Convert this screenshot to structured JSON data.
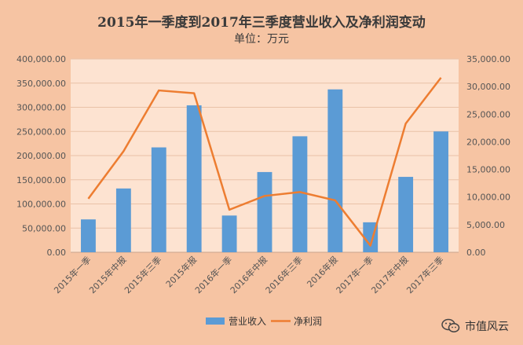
{
  "chart_data": {
    "type": "bar",
    "title": "2015年一季度到2017年三季度营业收入及净利润变动",
    "subtitle": "单位：万元",
    "categories": [
      "2015年一季",
      "2015年中报",
      "2015年三季",
      "2015年报",
      "2016年一季",
      "2016年中报",
      "2016年三季",
      "2016年报",
      "2017年一季",
      "2017年中报",
      "2017年三季"
    ],
    "series": [
      {
        "name": "营业收入",
        "type": "bar",
        "axis": "left",
        "color": "#5b9bd5",
        "values": [
          68000,
          132000,
          217000,
          304000,
          76000,
          166000,
          240000,
          337000,
          62000,
          156000,
          250000
        ]
      },
      {
        "name": "净利润",
        "type": "line",
        "axis": "right",
        "color": "#ed7d31",
        "values": [
          9700,
          18300,
          29300,
          28800,
          7700,
          10200,
          10900,
          9400,
          1200,
          23300,
          31600
        ]
      }
    ],
    "left_axis": {
      "min": 0,
      "max": 400000,
      "step": 50000,
      "tick_labels": [
        "0.00",
        "50,000.00",
        "100,000.00",
        "150,000.00",
        "200,000.00",
        "250,000.00",
        "300,000.00",
        "350,000.00",
        "400,000.00"
      ]
    },
    "right_axis": {
      "min": 0,
      "max": 35000,
      "step": 5000,
      "tick_labels": [
        "0.00",
        "5,000.00",
        "10,000.00",
        "15,000.00",
        "20,000.00",
        "25,000.00",
        "30,000.00",
        "35,000.00"
      ]
    },
    "grid": true,
    "legend": "bottom-center"
  },
  "watermark": {
    "text": "市值风云",
    "icon": "wechat-icon"
  }
}
